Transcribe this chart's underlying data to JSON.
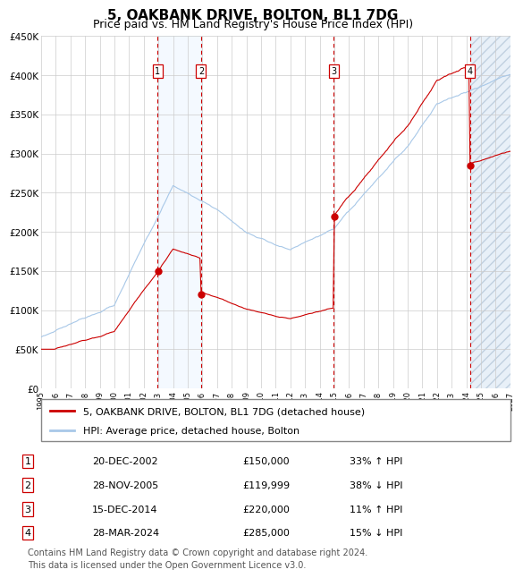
{
  "title": "5, OAKBANK DRIVE, BOLTON, BL1 7DG",
  "subtitle": "Price paid vs. HM Land Registry's House Price Index (HPI)",
  "ylim": [
    0,
    450000
  ],
  "yticks": [
    0,
    50000,
    100000,
    150000,
    200000,
    250000,
    300000,
    350000,
    400000,
    450000
  ],
  "x_start_year": 1995,
  "x_end_year": 2027,
  "sale_year_floats": [
    2002.96,
    2005.91,
    2014.96,
    2024.25
  ],
  "sale_prices": [
    150000,
    119999,
    220000,
    285000
  ],
  "sale_labels": [
    "1",
    "2",
    "3",
    "4"
  ],
  "hpi_color": "#a8c8e8",
  "price_color": "#cc0000",
  "background_color": "#ffffff",
  "grid_color": "#cccccc",
  "shade_color": "#ddeeff",
  "legend_line1": "5, OAKBANK DRIVE, BOLTON, BL1 7DG (detached house)",
  "legend_line2": "HPI: Average price, detached house, Bolton",
  "table_entries": [
    [
      "1",
      "20-DEC-2002",
      "£150,000",
      "33% ↑ HPI"
    ],
    [
      "2",
      "28-NOV-2005",
      "£119,999",
      "38% ↓ HPI"
    ],
    [
      "3",
      "15-DEC-2014",
      "£220,000",
      "11% ↑ HPI"
    ],
    [
      "4",
      "28-MAR-2024",
      "£285,000",
      "15% ↓ HPI"
    ]
  ],
  "footer": "Contains HM Land Registry data © Crown copyright and database right 2024.\nThis data is licensed under the Open Government Licence v3.0.",
  "title_fontsize": 11,
  "subtitle_fontsize": 9,
  "axis_fontsize": 7.5,
  "legend_fontsize": 8,
  "table_fontsize": 8,
  "footer_fontsize": 7
}
